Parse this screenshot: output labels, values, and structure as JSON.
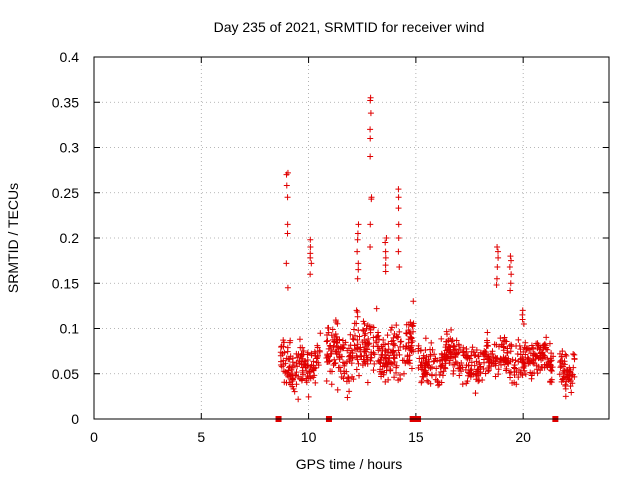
{
  "chart_data": {
    "type": "scatter",
    "title": "Day 235 of 2021, SRMTID for receiver wind",
    "xlabel": "GPS time / hours",
    "ylabel": "SRMTID / TECUs",
    "xlim": [
      0,
      24
    ],
    "ylim": [
      0,
      0.4
    ],
    "xticks": [
      0,
      5,
      10,
      15,
      20
    ],
    "yticks": [
      0,
      0.05,
      0.1,
      0.15,
      0.2,
      0.25,
      0.3,
      0.35,
      0.4
    ],
    "xtick_labels": [
      "0",
      "5",
      "10",
      "15",
      "20"
    ],
    "ytick_labels": [
      "0",
      "0.05",
      "0.1",
      "0.15",
      "0.2",
      "0.25",
      "0.3",
      "0.35",
      "0.4"
    ],
    "grid": true,
    "series_color": "#e00000",
    "marker": "plus",
    "segments": [
      {
        "start": 8.7,
        "end": 10.6,
        "base": 0.06,
        "spread": 0.035,
        "n": 140
      },
      {
        "start": 10.8,
        "end": 14.9,
        "base": 0.075,
        "spread": 0.045,
        "n": 330
      },
      {
        "start": 15.1,
        "end": 21.4,
        "base": 0.065,
        "spread": 0.03,
        "n": 460
      },
      {
        "start": 21.7,
        "end": 22.4,
        "base": 0.055,
        "spread": 0.025,
        "n": 60
      }
    ],
    "peaks": [
      {
        "x": 9.0,
        "values": [
          0.272,
          0.27,
          0.258,
          0.245,
          0.215,
          0.205,
          0.172,
          0.145
        ]
      },
      {
        "x": 10.1,
        "values": [
          0.198,
          0.19,
          0.183,
          0.178,
          0.172,
          0.16
        ]
      },
      {
        "x": 12.3,
        "values": [
          0.215,
          0.205,
          0.198,
          0.185,
          0.172,
          0.165,
          0.155
        ]
      },
      {
        "x": 12.9,
        "values": [
          0.355,
          0.352,
          0.338,
          0.32,
          0.31,
          0.29,
          0.245,
          0.243,
          0.215,
          0.19
        ]
      },
      {
        "x": 13.6,
        "values": [
          0.2,
          0.195,
          0.185,
          0.178,
          0.17,
          0.163
        ]
      },
      {
        "x": 14.2,
        "values": [
          0.254,
          0.245,
          0.233,
          0.215,
          0.2,
          0.185,
          0.168
        ]
      },
      {
        "x": 18.8,
        "values": [
          0.19,
          0.185,
          0.178,
          0.168,
          0.155,
          0.148
        ]
      },
      {
        "x": 19.4,
        "values": [
          0.18,
          0.175,
          0.168,
          0.16,
          0.15,
          0.142
        ]
      },
      {
        "x": 20.0,
        "values": [
          0.12,
          0.115,
          0.11,
          0.105
        ]
      }
    ],
    "zero_markers": [
      8.6,
      10.95,
      14.85,
      15.1,
      21.5
    ]
  }
}
